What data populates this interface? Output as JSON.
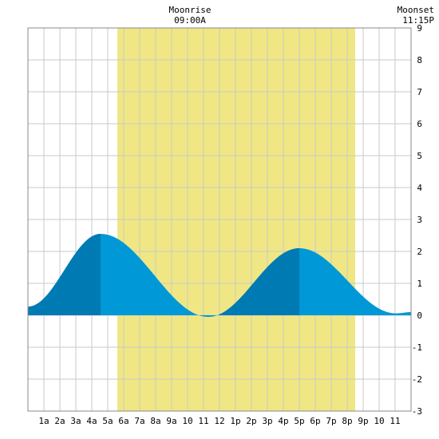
{
  "chart_data": {
    "type": "area",
    "title": "",
    "xlabel": "",
    "ylabel": "",
    "xlim": [
      0,
      24
    ],
    "ylim": [
      -3,
      9
    ],
    "grid": true,
    "x_tick_labels": [
      "1a",
      "2a",
      "3a",
      "4a",
      "5a",
      "6a",
      "7a",
      "8a",
      "9a",
      "10",
      "11",
      "12",
      "1p",
      "2p",
      "3p",
      "4p",
      "5p",
      "6p",
      "7p",
      "8p",
      "9p",
      "10",
      "11"
    ],
    "y_ticks": [
      -3,
      -2,
      -1,
      0,
      1,
      2,
      3,
      4,
      5,
      6,
      7,
      8,
      9
    ],
    "moon_window": {
      "start": 5.6,
      "end": 20.5
    },
    "tide_extrema": [
      {
        "x": 0.0,
        "y": 0.27
      },
      {
        "x": 4.55,
        "y": 2.55
      },
      {
        "x": 11.3,
        "y": -0.05
      },
      {
        "x": 17.0,
        "y": 2.1
      },
      {
        "x": 23.05,
        "y": 0.06
      },
      {
        "x": 24.0,
        "y": 0.1
      }
    ],
    "dark_segments": [
      [
        0,
        4.55
      ],
      [
        12.0,
        17.0
      ]
    ],
    "colors": {
      "daylight": "#f0e784",
      "tide_light": "#0098d6",
      "tide_dark": "#007ab3",
      "grid": "#c8c8c8"
    }
  },
  "annotations": {
    "moonrise_label": "Moonrise",
    "moonrise_time": "09:00A",
    "moonset_label": "Moonset",
    "moonset_time": "11:15P"
  }
}
